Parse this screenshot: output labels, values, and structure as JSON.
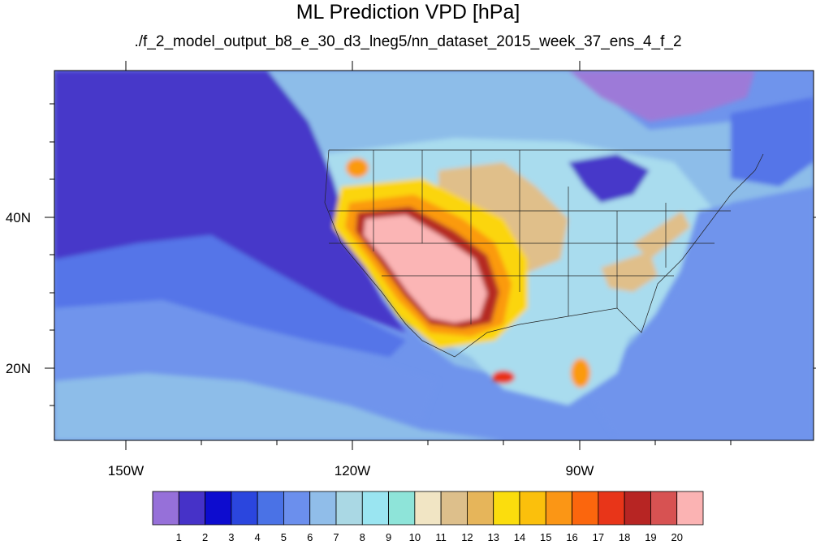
{
  "title": "ML Prediction VPD [hPa]",
  "subtitle": "./f_2_model_output_b8_e_30_d3_lneg5/nn_dataset_2015_week_37_ens_4_f_2",
  "map": {
    "lon_labels": [
      "150W",
      "120W",
      "90W"
    ],
    "lat_labels": [
      "40N",
      "20N"
    ],
    "colors": {
      "deep_ocean": "#4637c9",
      "ocean_mid": "#5574e8",
      "ocean_light": "#6f94ec",
      "sky": "#8dbde9",
      "pale_cyan": "#a9dcee",
      "plains_tan": "#e0bf8a",
      "yellow": "#fbd50d",
      "orange": "#fb9a0e",
      "red": "#e83319",
      "dark_red": "#b52a22",
      "pink": "#fbb5b5",
      "lavender": "#9d7ad8"
    }
  },
  "colorbar": {
    "labels": [
      "1",
      "2",
      "3",
      "4",
      "5",
      "6",
      "7",
      "8",
      "9",
      "10",
      "11",
      "12",
      "13",
      "14",
      "15",
      "16",
      "17",
      "18",
      "19",
      "20"
    ],
    "colors": [
      "#9670d9",
      "#4632c8",
      "#0d0ccf",
      "#2b46de",
      "#4a72e6",
      "#6b8fed",
      "#90bde9",
      "#aad8e4",
      "#9ae5f1",
      "#8ee4d9",
      "#f1e5c4",
      "#ddbf8b",
      "#e6b55a",
      "#fbdd0d",
      "#fbc00c",
      "#fb9615",
      "#fb660d",
      "#e83519",
      "#b72523",
      "#d75252",
      "#fbb3b3"
    ]
  }
}
